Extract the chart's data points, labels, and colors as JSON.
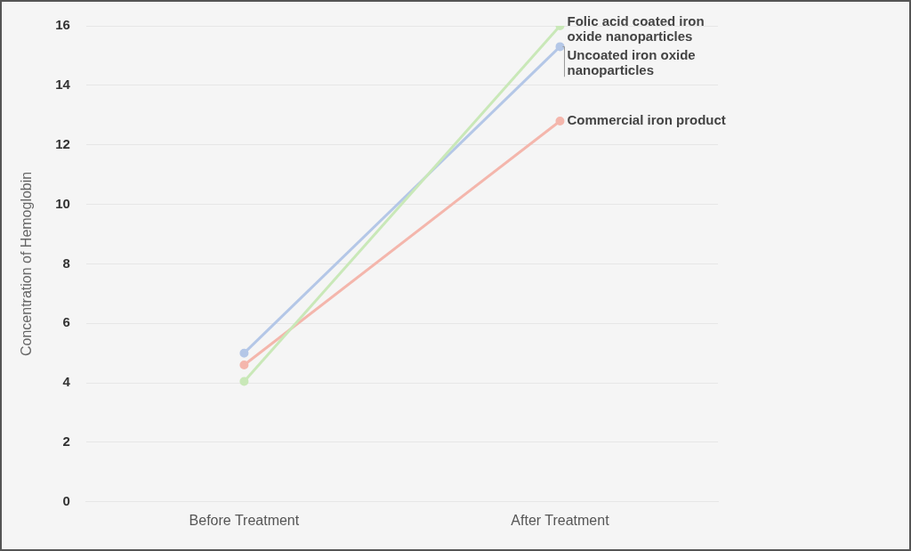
{
  "chart_data": {
    "type": "line",
    "ylabel": "Concentration of Hemoglobin",
    "categories": [
      "Before Treatment",
      "After Treatment"
    ],
    "series": [
      {
        "name": "Folic acid coated iron oxide nanoparticles",
        "color": "#c9e8b8",
        "values": [
          4.05,
          16
        ]
      },
      {
        "name": "Uncoated iron oxide nanoparticles",
        "color": "#b4c7e7",
        "values": [
          5,
          15.3
        ]
      },
      {
        "name": "Commercial iron product",
        "color": "#f4b6ac",
        "values": [
          4.6,
          12.8
        ]
      }
    ],
    "ylim": [
      0,
      16
    ],
    "yticks": [
      0,
      2,
      4,
      6,
      8,
      10,
      12,
      14,
      16
    ],
    "grid": "y",
    "marker": "circle",
    "line_style": "solid"
  }
}
